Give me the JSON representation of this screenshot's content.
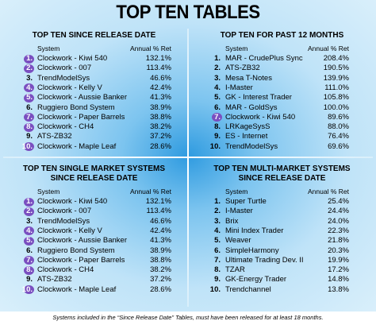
{
  "title": "TOP TEN TABLES",
  "panels": [
    {
      "title_lines": [
        "TOP TEN SINCE RELEASE DATE"
      ],
      "headers": [
        "System",
        "Annual % Ret"
      ],
      "rows": [
        {
          "rank": "1.",
          "system": "Clockwork - Kiwi 540",
          "ret": "132.1%",
          "circled": true
        },
        {
          "rank": "2.",
          "system": "Clockwork - 007",
          "ret": "113.4%",
          "circled": true
        },
        {
          "rank": "3.",
          "system": "TrendModelSys",
          "ret": "46.6%",
          "circled": false
        },
        {
          "rank": "4.",
          "system": "Clockwork - Kelly V",
          "ret": "42.4%",
          "circled": true
        },
        {
          "rank": "5.",
          "system": "Clockwork - Aussie Banker",
          "ret": "41.3%",
          "circled": true
        },
        {
          "rank": "6.",
          "system": "Ruggiero Bond System",
          "ret": "38.9%",
          "circled": false
        },
        {
          "rank": "7.",
          "system": "Clockwork - Paper Barrels",
          "ret": "38.8%",
          "circled": true
        },
        {
          "rank": "8.",
          "system": "Clockwork - CH4",
          "ret": "38.2%",
          "circled": true
        },
        {
          "rank": "9.",
          "system": "ATS-ZB32",
          "ret": "37.2%",
          "circled": false
        },
        {
          "rank": "10.",
          "system": "Clockwork - Maple Leaf",
          "ret": "28.6%",
          "circled": true
        }
      ]
    },
    {
      "title_lines": [
        "TOP TEN FOR PAST 12 MONTHS"
      ],
      "headers": [
        "System",
        "Annual % Ret"
      ],
      "rows": [
        {
          "rank": "1.",
          "system": "MAR - CrudePlus Sync",
          "ret": "208.4%",
          "circled": false
        },
        {
          "rank": "2.",
          "system": "ATS-ZB32",
          "ret": "190.5%",
          "circled": false
        },
        {
          "rank": "3.",
          "system": "Mesa T-Notes",
          "ret": "139.9%",
          "circled": false
        },
        {
          "rank": "4.",
          "system": "I-Master",
          "ret": "111.0%",
          "circled": false
        },
        {
          "rank": "5.",
          "system": "GK - Interest Trader",
          "ret": "105.8%",
          "circled": false
        },
        {
          "rank": "6.",
          "system": "MAR - GoldSys",
          "ret": "100.0%",
          "circled": false
        },
        {
          "rank": "7.",
          "system": "Clockwork - Kiwi 540",
          "ret": "89.6%",
          "circled": true
        },
        {
          "rank": "8.",
          "system": "LRKageSysS",
          "ret": "88.0%",
          "circled": false
        },
        {
          "rank": "9.",
          "system": "ES - Internet",
          "ret": "76.4%",
          "circled": false
        },
        {
          "rank": "10.",
          "system": "TrendModelSys",
          "ret": "69.6%",
          "circled": false
        }
      ]
    },
    {
      "title_lines": [
        "TOP TEN SINGLE MARKET SYSTEMS",
        "SINCE RELEASE DATE"
      ],
      "headers": [
        "System",
        "Annual % Ret"
      ],
      "rows": [
        {
          "rank": "1.",
          "system": "Clockwork - Kiwi 540",
          "ret": "132.1%",
          "circled": true
        },
        {
          "rank": "2.",
          "system": "Clockwork - 007",
          "ret": "113.4%",
          "circled": true
        },
        {
          "rank": "3.",
          "system": "TrendModelSys",
          "ret": "46.6%",
          "circled": false
        },
        {
          "rank": "4.",
          "system": "Clockwork - Kelly V",
          "ret": "42.4%",
          "circled": true
        },
        {
          "rank": "5.",
          "system": "Clockwork - Aussie Banker",
          "ret": "41.3%",
          "circled": true
        },
        {
          "rank": "6.",
          "system": "Ruggiero Bond System",
          "ret": "38.9%",
          "circled": false
        },
        {
          "rank": "7.",
          "system": "Clockwork - Paper Barrels",
          "ret": "38.8%",
          "circled": true
        },
        {
          "rank": "8.",
          "system": "Clockwork - CH4",
          "ret": "38.2%",
          "circled": true
        },
        {
          "rank": "9.",
          "system": "ATS-ZB32",
          "ret": "37.2%",
          "circled": false
        },
        {
          "rank": "10.",
          "system": "Clockwork - Maple Leaf",
          "ret": "28.6%",
          "circled": true
        }
      ]
    },
    {
      "title_lines": [
        "TOP TEN MULTI-MARKET SYSTEMS",
        "SINCE RELEASE DATE"
      ],
      "headers": [
        "System",
        "Annual % Ret"
      ],
      "rows": [
        {
          "rank": "1.",
          "system": "Super Turtle",
          "ret": "25.4%",
          "circled": false
        },
        {
          "rank": "2.",
          "system": "I-Master",
          "ret": "24.4%",
          "circled": false
        },
        {
          "rank": "3.",
          "system": "Brix",
          "ret": "24.0%",
          "circled": false
        },
        {
          "rank": "4.",
          "system": "Mini Index Trader",
          "ret": "22.3%",
          "circled": false
        },
        {
          "rank": "5.",
          "system": "Weaver",
          "ret": "21.8%",
          "circled": false
        },
        {
          "rank": "6.",
          "system": "SimpleHarmony",
          "ret": "20.3%",
          "circled": false
        },
        {
          "rank": "7.",
          "system": "Ultimate Trading Dev. II",
          "ret": "19.9%",
          "circled": false
        },
        {
          "rank": "8.",
          "system": "TZAR",
          "ret": "17.2%",
          "circled": false
        },
        {
          "rank": "9.",
          "system": "GK-Energy Trader",
          "ret": "14.8%",
          "circled": false
        },
        {
          "rank": "10.",
          "system": "Trendchannel",
          "ret": "13.8%",
          "circled": false
        }
      ]
    }
  ],
  "footer": "Systems included in the “Since Release Date” Tables, must have been released for at least 18 months."
}
